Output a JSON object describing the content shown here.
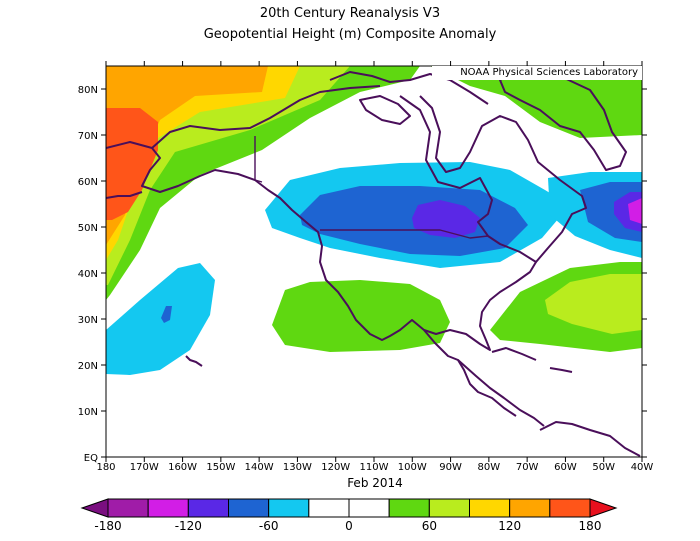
{
  "title": "20th Century Reanalysis V3",
  "subtitle": "Geopotential Height (m) Composite Anomaly",
  "credit": "NOAA Physical Sciences Laboratory",
  "time_label": "Feb 2014",
  "map": {
    "lon_range": [
      -180,
      -40
    ],
    "lat_range": [
      0,
      85
    ],
    "lat_ticks": [
      "EQ",
      "10N",
      "20N",
      "30N",
      "40N",
      "50N",
      "60N",
      "70N",
      "80N"
    ],
    "lon_ticks": [
      "180",
      "170W",
      "160W",
      "150W",
      "140W",
      "130W",
      "120W",
      "110W",
      "100W",
      "90W",
      "80W",
      "70W",
      "60W",
      "50W",
      "40W"
    ]
  },
  "colorbar": {
    "labels": [
      "-180",
      "-120",
      "-60",
      "0",
      "60",
      "120",
      "180"
    ],
    "colors": [
      "#a01ca8",
      "#d21ee6",
      "#5a28e6",
      "#1e64d2",
      "#14c8f0",
      "#ffffff",
      "#ffffff",
      "#5fd811",
      "#b9ec1e",
      "#ffd700",
      "#ffa500",
      "#ff5519"
    ]
  }
}
